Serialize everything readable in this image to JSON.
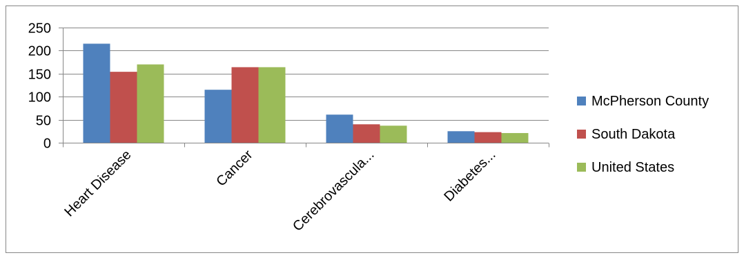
{
  "chart_data": {
    "type": "bar",
    "title": "",
    "xlabel": "",
    "ylabel": "",
    "categories": [
      "Heart Disease",
      "Cancer",
      "Cerebrovascula...",
      "Diabetes..."
    ],
    "series": [
      {
        "name": "McPherson County",
        "values": [
          215,
          115,
          61,
          25
        ],
        "color": "#4f81bd"
      },
      {
        "name": "South Dakota",
        "values": [
          154,
          164,
          40,
          23
        ],
        "color": "#c0504d"
      },
      {
        "name": "United States",
        "values": [
          170,
          164,
          37,
          21
        ],
        "color": "#9bbb59"
      }
    ],
    "ylim": [
      0,
      250
    ],
    "yticks": [
      "0",
      "50",
      "100",
      "150",
      "200",
      "250"
    ],
    "grid": true,
    "legend_position": "right"
  }
}
